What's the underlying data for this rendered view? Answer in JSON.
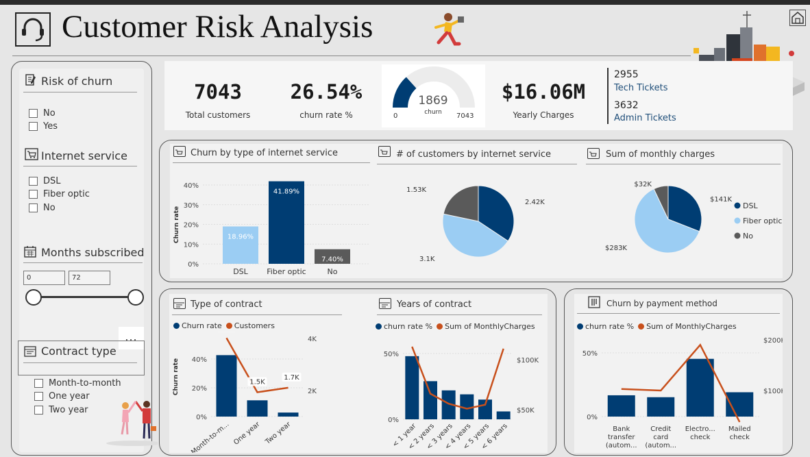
{
  "title": "Customer Risk Analysis",
  "slicers": {
    "risk": {
      "title": "Risk of churn",
      "options": [
        "No",
        "Yes"
      ]
    },
    "internet": {
      "title": "Internet service",
      "options": [
        "DSL",
        "Fiber optic",
        "No"
      ]
    },
    "months": {
      "title": "Months subscribed",
      "min": "0",
      "max": "72"
    },
    "contract": {
      "title": "Contract type",
      "options": [
        "Month-to-month",
        "One year",
        "Two year"
      ]
    },
    "more": "..."
  },
  "kpis": {
    "total": {
      "value": "7043",
      "label": "Total customers"
    },
    "churn": {
      "value": "26.54%",
      "label": "churn rate %"
    },
    "gauge": {
      "value": "1869",
      "label": "churn",
      "min": "0",
      "max": "7043",
      "fraction": 0.2654
    },
    "charges": {
      "value": "$16.06M",
      "label": "Yearly Charges"
    },
    "tickets": [
      {
        "value": "2955",
        "label": "Tech Tickets"
      },
      {
        "value": "3632",
        "label": "Admin Tickets"
      }
    ]
  },
  "chart_data": [
    {
      "type": "bar",
      "title": "Churn by type of internet service",
      "ylabel": "Churn rate",
      "ylim": [
        0,
        40
      ],
      "yticks": [
        "0%",
        "10%",
        "20%",
        "30%",
        "40%"
      ],
      "categories": [
        "DSL",
        "Fiber optic",
        "No"
      ],
      "values": [
        18.96,
        41.89,
        7.4
      ],
      "data_labels": [
        "18.96%",
        "41.89%",
        "7.40%"
      ],
      "colors": [
        "#9bcdf3",
        "#003d73",
        "#5a5a5a"
      ]
    },
    {
      "type": "pie",
      "title": "# of customers by internet service",
      "categories": [
        "DSL",
        "Fiber optic",
        "No"
      ],
      "values": [
        2.42,
        3.1,
        1.53
      ],
      "data_labels": [
        "2.42K",
        "3.1K",
        "1.53K"
      ],
      "colors": [
        "#003d73",
        "#9bcdf3",
        "#5a5a5a"
      ]
    },
    {
      "type": "pie",
      "title": "Sum of monthly charges",
      "categories": [
        "DSL",
        "Fiber optic",
        "No"
      ],
      "values": [
        141,
        283,
        32
      ],
      "data_labels": [
        "$141K",
        "$283K",
        "$32K"
      ],
      "legend": [
        "DSL",
        "Fiber optic",
        "No"
      ],
      "colors": [
        "#003d73",
        "#9bcdf3",
        "#5a5a5a"
      ]
    },
    {
      "type": "bar",
      "title": "Type of contract",
      "ylabel": "Churn rate",
      "legend": [
        "Churn rate",
        "Customers"
      ],
      "categories": [
        "Month-to-m...",
        "One year",
        "Two year"
      ],
      "series": [
        {
          "name": "Churn rate",
          "values": [
            42.7,
            11.3,
            2.8
          ]
        },
        {
          "name": "Customers",
          "values": [
            3.9,
            1.5,
            1.7
          ]
        }
      ],
      "data_labels": [
        "3.9K",
        "1.5K",
        "1.7K"
      ],
      "ylim": [
        0,
        50
      ],
      "yticks": [
        "0%",
        "20%",
        "40%"
      ],
      "y2ticks": [
        "2K",
        "4K"
      ]
    },
    {
      "type": "bar",
      "title": "Years of contract",
      "legend": [
        "churn rate %",
        "Sum of MonthlyCharges"
      ],
      "categories": [
        "< 1 year",
        "< 2 years",
        "< 3 years",
        "< 4 years",
        "< 5 years",
        "< 6 years"
      ],
      "series": [
        {
          "name": "churn rate %",
          "values": [
            48,
            29,
            22,
            19,
            15,
            6
          ]
        },
        {
          "name": "Sum of MonthlyCharges",
          "values": [
            113,
            66,
            56,
            51,
            55,
            111
          ]
        }
      ],
      "yticks": [
        "0%",
        "50%"
      ],
      "y2ticks": [
        "$50K",
        "$100K"
      ]
    },
    {
      "type": "bar",
      "title": "Churn by payment method",
      "legend": [
        "churn rate %",
        "Sum of MonthlyCharges"
      ],
      "categories": [
        "Bank transfer (autom...",
        "Credit card (autom...",
        "Electro... check",
        "Mailed check"
      ],
      "series": [
        {
          "name": "churn rate %",
          "values": [
            16.7,
            15.2,
            45.3,
            19.1
          ]
        },
        {
          "name": "Sum of MonthlyCharges",
          "values": [
            103,
            100,
            190,
            38
          ]
        }
      ],
      "yticks": [
        "0%",
        "50%"
      ],
      "y2ticks": [
        "$100K",
        "$200K"
      ]
    }
  ],
  "colors": {
    "primary": "#003d73",
    "light": "#9bcdf3",
    "grey": "#5a5a5a",
    "line": "#c8501c"
  }
}
